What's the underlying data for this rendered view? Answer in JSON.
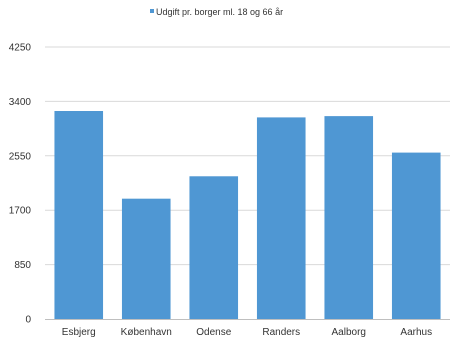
{
  "chart_data": {
    "type": "bar",
    "categories": [
      "Esbjerg",
      "København",
      "Odense",
      "Randers",
      "Aalborg",
      "Aarhus"
    ],
    "series": [
      {
        "name": "Udgift pr. borger ml. 18 og 66 år",
        "values": [
          3250,
          1880,
          2230,
          3150,
          3170,
          2600
        ]
      }
    ],
    "yticks": [
      "0",
      "850",
      "1700",
      "2550",
      "3400",
      "4250"
    ],
    "ylim": [
      0,
      4250
    ],
    "grid": true,
    "legend_position": "top",
    "colors": {
      "bar": "#4f97d3",
      "grid": "#d9d9d9",
      "axis": "#bfbfbf"
    }
  }
}
